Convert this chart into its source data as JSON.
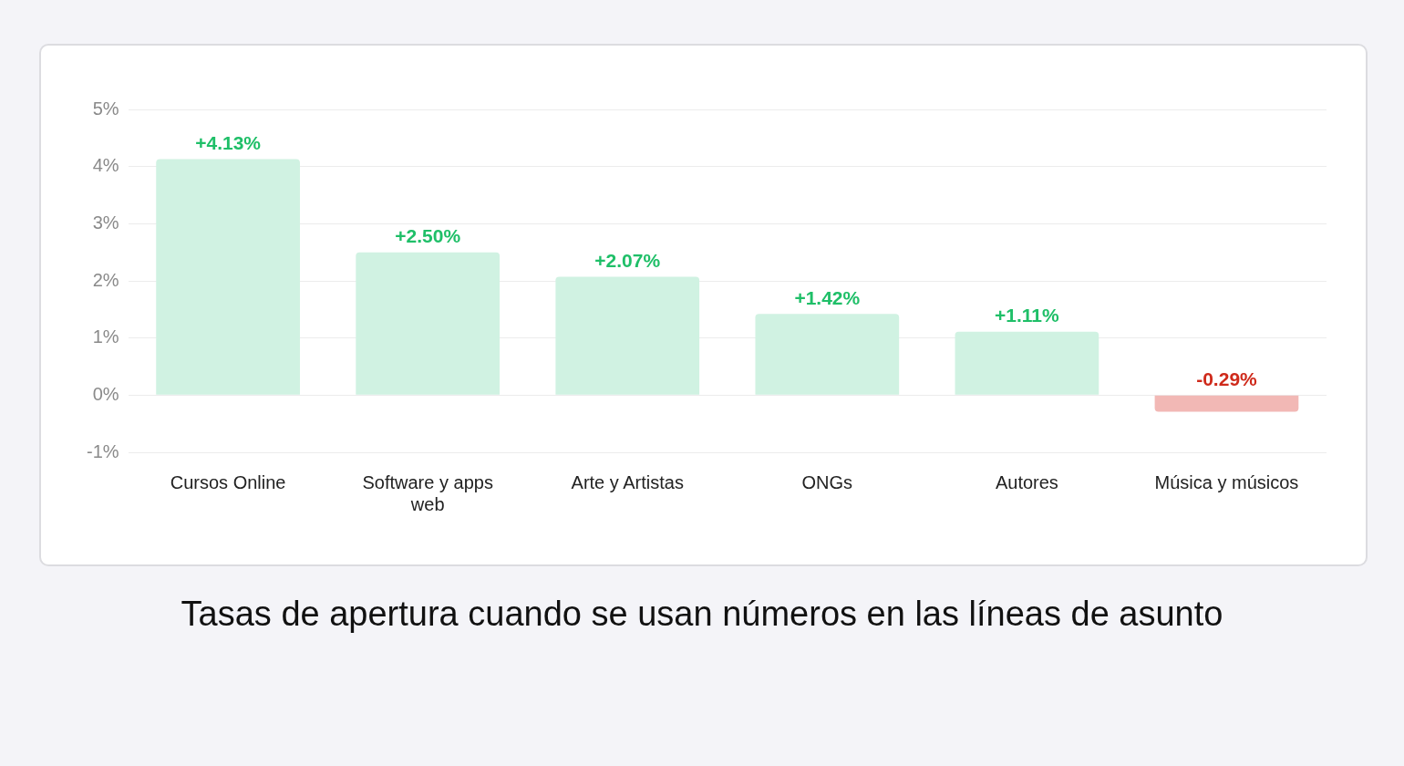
{
  "chart_data": {
    "type": "bar",
    "title": "Tasas de apertura cuando se usan números en las líneas de asunto",
    "categories": [
      "Cursos Online",
      "Software y apps web",
      "Arte y Artistas",
      "ONGs",
      "Autores",
      "Música y músicos"
    ],
    "values": [
      4.13,
      2.5,
      2.07,
      1.42,
      1.11,
      -0.29
    ],
    "colors": [
      "#d0f2e2",
      "#d0f2e2",
      "#d0f2e2",
      "#d0f2e2",
      "#d0f2e2",
      "#f2b8b5"
    ],
    "value_labels": [
      "+4.13%",
      "+2.50%",
      "+2.07%",
      "+1.42%",
      "+1.11%",
      "-0.29%"
    ],
    "ylim": [
      -1,
      5
    ],
    "yticks": [
      {
        "value": -1,
        "label": "-1%"
      },
      {
        "value": 0,
        "label": "0%"
      },
      {
        "value": 1,
        "label": "1%"
      },
      {
        "value": 2,
        "label": "2%"
      },
      {
        "value": 3,
        "label": "3%"
      },
      {
        "value": 4,
        "label": "4%"
      },
      {
        "value": 5,
        "label": "5%"
      }
    ],
    "grid": "y",
    "legend": false
  }
}
